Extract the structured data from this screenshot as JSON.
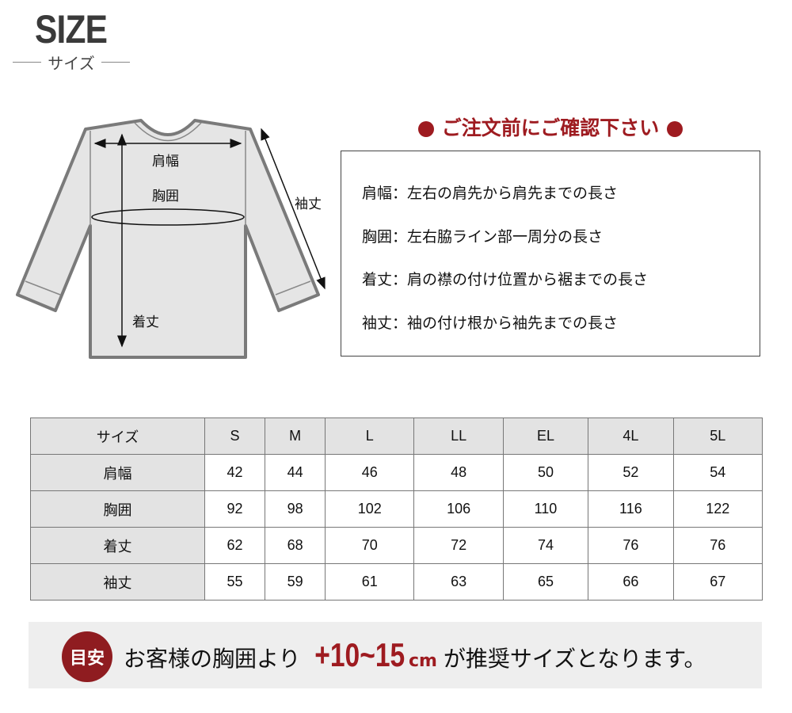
{
  "header": {
    "title": "SIZE",
    "subtitle": "サイズ"
  },
  "diagram": {
    "shoulder": "肩幅",
    "chest": "胸囲",
    "length": "着丈",
    "sleeve": "袖丈"
  },
  "notice": {
    "title": "ご注文前にご確認下さい",
    "definitions": [
      "肩幅：左右の肩先から肩先までの長さ",
      "胸囲：左右脇ライン部一周分の長さ",
      "着丈：肩の襟の付け位置から裾までの長さ",
      "袖丈：袖の付け根から袖先までの長さ"
    ]
  },
  "table": {
    "headers": [
      "サイズ",
      "S",
      "M",
      "L",
      "LL",
      "EL",
      "4L",
      "5L"
    ],
    "rows": [
      [
        "肩幅",
        "42",
        "44",
        "46",
        "48",
        "50",
        "52",
        "54"
      ],
      [
        "胸囲",
        "92",
        "98",
        "102",
        "106",
        "110",
        "116",
        "122"
      ],
      [
        "着丈",
        "62",
        "68",
        "70",
        "72",
        "74",
        "76",
        "76"
      ],
      [
        "袖丈",
        "55",
        "59",
        "61",
        "63",
        "65",
        "66",
        "67"
      ]
    ]
  },
  "banner": {
    "badge": "目安",
    "prefix": "お客様の胸囲より",
    "range": "+10~15",
    "unit": "cm",
    "suffix": "が推奨サイズとなります。"
  },
  "colors": {
    "accent": "#9e1b20",
    "shirt": "#e5e5e5",
    "shirt_outline": "#7a7a7a"
  }
}
